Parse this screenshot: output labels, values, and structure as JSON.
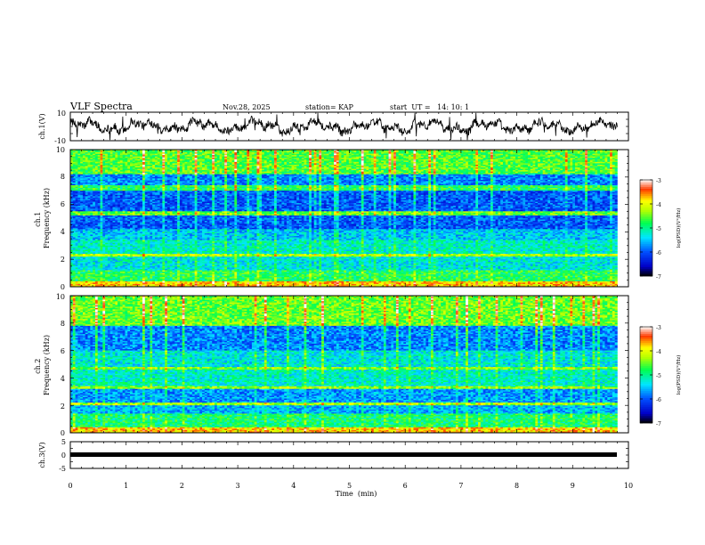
{
  "header": {
    "title": "VLF Spectra",
    "date": "Nov.28, 2025",
    "station": "station= KAP",
    "start_time": "start  UT =   14: 10: 1"
  },
  "colors": {
    "background": "#ffffff",
    "axes": "#000000",
    "trace": "#000000",
    "colormap": [
      "#000000",
      "#0000ff",
      "#00ffff",
      "#00ff00",
      "#ffff00",
      "#ff0000",
      "#ffffff"
    ]
  },
  "chart_data": [
    {
      "type": "line",
      "name": "ch1-waveform",
      "ylabel": "ch.1(V)",
      "ylim": [
        -10,
        10
      ],
      "yticks": [
        "10",
        "-10"
      ],
      "description_series": "amplitude oscillating roughly between -7 and 8 V across 0 to 9.8 min"
    },
    {
      "type": "heatmap",
      "name": "ch1-spectrogram",
      "ylabel": "ch.1\nFrequency (kHz)",
      "ylim": [
        0,
        10
      ],
      "yticks": [
        "0",
        "2",
        "4",
        "6",
        "8",
        "10"
      ],
      "xlim": [
        0,
        9.8
      ],
      "bands": [
        {
          "from": 0,
          "to": 0.4,
          "level": -3.8
        },
        {
          "from": 0.4,
          "to": 1.2,
          "level": -4.8
        },
        {
          "from": 1.2,
          "to": 2.2,
          "level": -5.3
        },
        {
          "from": 2.2,
          "to": 2.4,
          "level": -4.3
        },
        {
          "from": 2.4,
          "to": 3.4,
          "level": -5.2
        },
        {
          "from": 3.4,
          "to": 4.2,
          "level": -5.5
        },
        {
          "from": 4.2,
          "to": 5.2,
          "level": -6.0
        },
        {
          "from": 5.2,
          "to": 5.5,
          "level": -4.5
        },
        {
          "from": 5.5,
          "to": 7.0,
          "level": -6.0
        },
        {
          "from": 7.0,
          "to": 7.4,
          "level": -4.8
        },
        {
          "from": 7.4,
          "to": 8.2,
          "level": -5.8
        },
        {
          "from": 8.2,
          "to": 10,
          "level": -4.6
        }
      ],
      "colorbar": {
        "range": [
          -7,
          -3
        ],
        "ticks": [
          "-3",
          "-4",
          "-5",
          "-6",
          "-7"
        ],
        "label": "log(PSD)(V²/Hz)"
      }
    },
    {
      "type": "heatmap",
      "name": "ch2-spectrogram",
      "ylabel": "ch.2\nFrequency (kHz)",
      "ylim": [
        0,
        10
      ],
      "yticks": [
        "0",
        "2",
        "4",
        "6",
        "8",
        "10"
      ],
      "xlim": [
        0,
        9.8
      ],
      "bands": [
        {
          "from": 0,
          "to": 0.4,
          "level": -3.8
        },
        {
          "from": 0.4,
          "to": 1.4,
          "level": -4.9
        },
        {
          "from": 1.4,
          "to": 2.0,
          "level": -5.6
        },
        {
          "from": 2.0,
          "to": 2.2,
          "level": -4.3
        },
        {
          "from": 2.2,
          "to": 3.2,
          "level": -5.7
        },
        {
          "from": 3.2,
          "to": 3.4,
          "level": -4.4
        },
        {
          "from": 3.4,
          "to": 4.6,
          "level": -5.2
        },
        {
          "from": 4.6,
          "to": 4.8,
          "level": -4.5
        },
        {
          "from": 4.8,
          "to": 6.0,
          "level": -5.3
        },
        {
          "from": 6.0,
          "to": 7.8,
          "level": -5.8
        },
        {
          "from": 7.8,
          "to": 10,
          "level": -4.5
        }
      ],
      "colorbar": {
        "range": [
          -7,
          -3
        ],
        "ticks": [
          "-3",
          "-4",
          "-5",
          "-6",
          "-7"
        ],
        "label": "log(PSD)(V²/Hz)"
      }
    },
    {
      "type": "line",
      "name": "ch3-waveform",
      "ylabel": "ch.3(V)",
      "ylim": [
        -5,
        5
      ],
      "yticks": [
        "5",
        "0",
        "-5"
      ],
      "constant_value": 0,
      "xlabel": "Time  (min)",
      "xlim": [
        0,
        10
      ],
      "xticks": [
        "0",
        "1",
        "2",
        "3",
        "4",
        "5",
        "6",
        "7",
        "8",
        "9",
        "10"
      ]
    }
  ]
}
